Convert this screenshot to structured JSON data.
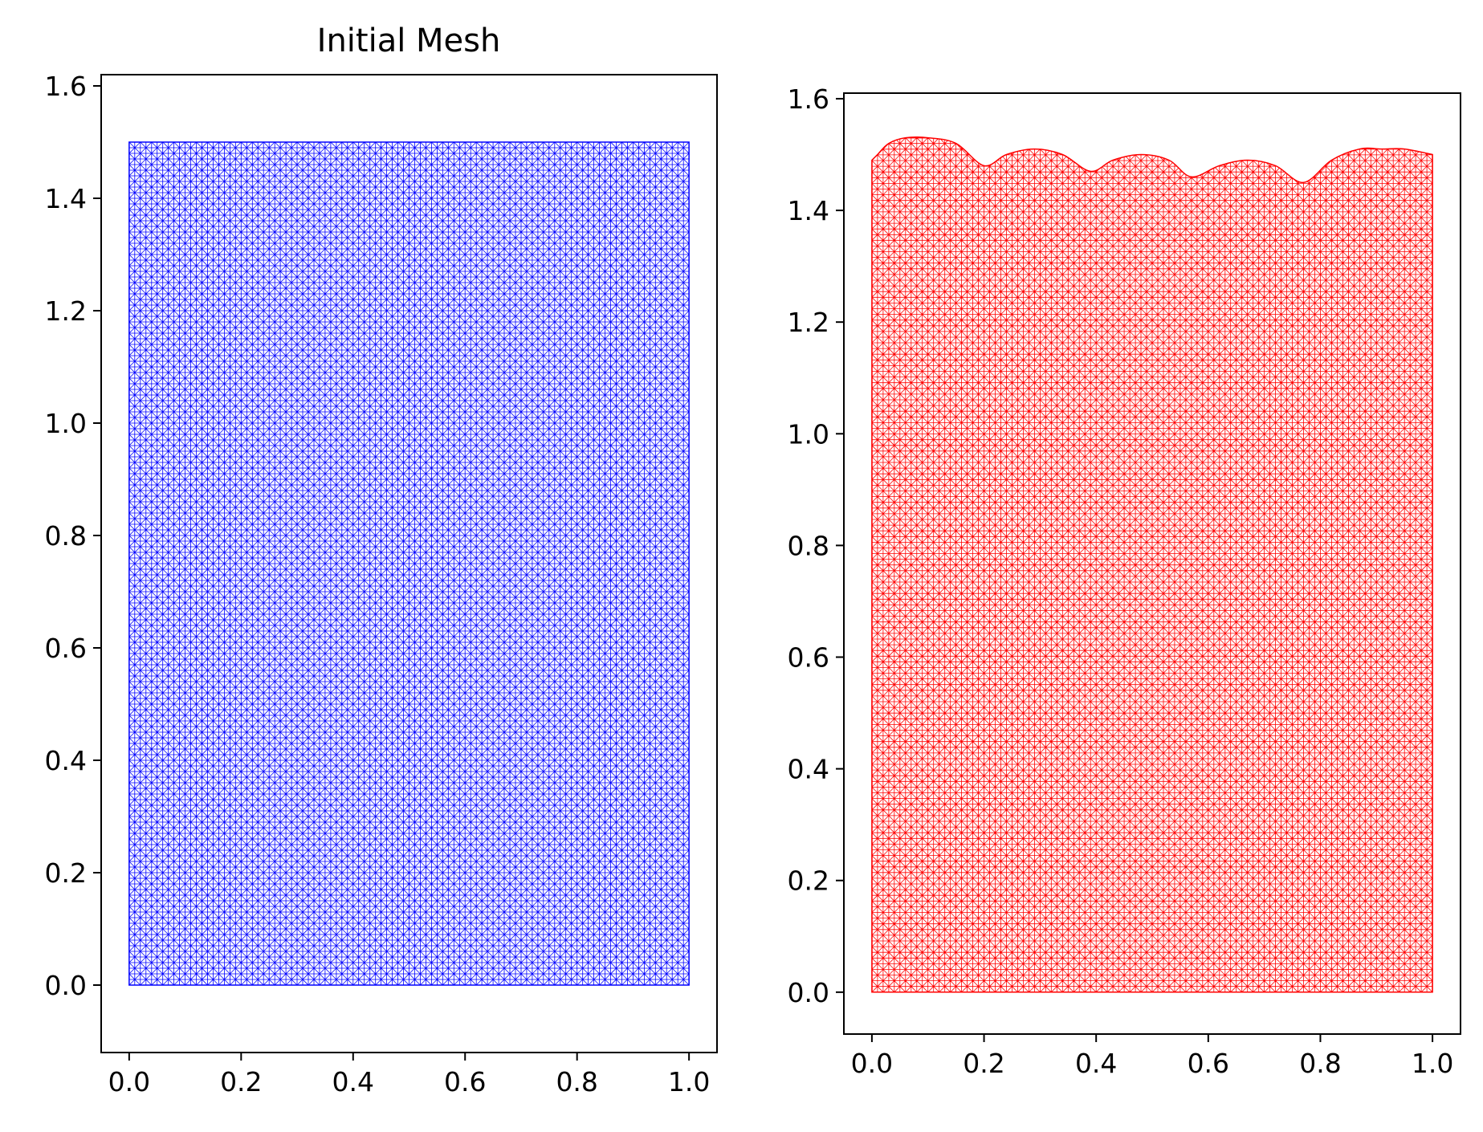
{
  "figure": {
    "background": "#ffffff"
  },
  "chart_data": [
    {
      "type": "mesh",
      "title": "Initial Mesh",
      "xlabel": "",
      "ylabel": "",
      "xlim": [
        -0.05,
        1.05
      ],
      "ylim": [
        -0.12,
        1.62
      ],
      "xticks": [
        0.0,
        0.2,
        0.4,
        0.6,
        0.8,
        1.0
      ],
      "xtick_labels": [
        "0.0",
        "0.2",
        "0.4",
        "0.6",
        "0.8",
        "1.0"
      ],
      "yticks": [
        0.0,
        0.2,
        0.4,
        0.6,
        0.8,
        1.0,
        1.2,
        1.4,
        1.6
      ],
      "ytick_labels": [
        "0.0",
        "0.2",
        "0.4",
        "0.6",
        "0.8",
        "1.0",
        "1.2",
        "1.4",
        "1.6"
      ],
      "domain": {
        "x": [
          0.0,
          1.0
        ],
        "y": [
          0.0,
          1.5
        ]
      },
      "mesh": {
        "element": "triangle",
        "nx": 100,
        "ny": 150
      },
      "color": "#0000ff",
      "grid": false
    },
    {
      "type": "mesh",
      "title": "",
      "xlabel": "",
      "ylabel": "",
      "xlim": [
        -0.05,
        1.05
      ],
      "ylim": [
        -0.075,
        1.61
      ],
      "xticks": [
        0.0,
        0.2,
        0.4,
        0.6,
        0.8,
        1.0
      ],
      "xtick_labels": [
        "0.0",
        "0.2",
        "0.4",
        "0.6",
        "0.8",
        "1.0"
      ],
      "yticks": [
        0.0,
        0.2,
        0.4,
        0.6,
        0.8,
        1.0,
        1.2,
        1.4,
        1.6
      ],
      "ytick_labels": [
        "0.0",
        "0.2",
        "0.4",
        "0.6",
        "0.8",
        "1.0",
        "1.2",
        "1.4",
        "1.6"
      ],
      "domain": {
        "x": [
          0.0,
          1.0
        ],
        "y": [
          0.0,
          1.5
        ]
      },
      "mesh": {
        "element": "triangle",
        "nx": 100,
        "ny": 150
      },
      "top_boundary": {
        "x": [
          0.0,
          0.01,
          0.03,
          0.06,
          0.1,
          0.15,
          0.2,
          0.24,
          0.29,
          0.34,
          0.39,
          0.43,
          0.48,
          0.53,
          0.57,
          0.62,
          0.67,
          0.72,
          0.77,
          0.82,
          0.87,
          0.91,
          0.95,
          1.0
        ],
        "y": [
          1.49,
          1.5,
          1.52,
          1.53,
          1.53,
          1.52,
          1.48,
          1.5,
          1.51,
          1.5,
          1.47,
          1.49,
          1.5,
          1.49,
          1.46,
          1.48,
          1.49,
          1.48,
          1.45,
          1.49,
          1.51,
          1.51,
          1.51,
          1.5
        ]
      },
      "color": "#ff0000",
      "grid": false
    }
  ]
}
